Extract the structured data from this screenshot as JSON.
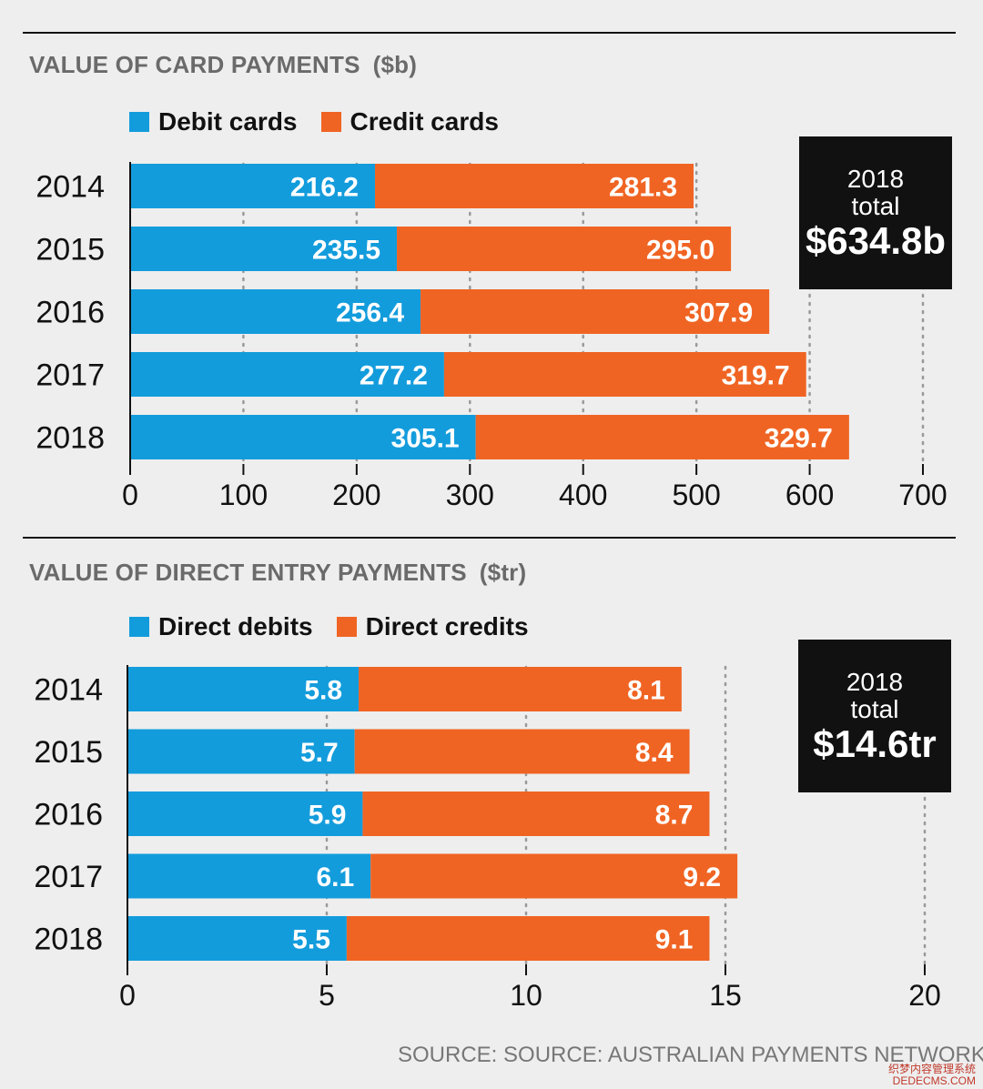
{
  "source": "SOURCE: SOURCE: AUSTRALIAN PAYMENTS NETWORK",
  "watermark": {
    "line1": "织梦内容管理系统",
    "line2": "DEDECMS.COM"
  },
  "colors": {
    "debit": "#139cdc",
    "credit": "#f06423",
    "box": "#111111",
    "background": "#eeeeee"
  },
  "panels": {
    "card": {
      "title": "VALUE OF CARD PAYMENTS",
      "unit": "($b)",
      "legend": [
        "Debit cards",
        "Credit cards"
      ],
      "total": {
        "year": "2018",
        "label": "total",
        "value": "$634.8b"
      }
    },
    "direct": {
      "title": "VALUE OF DIRECT ENTRY PAYMENTS",
      "unit": "($tr)",
      "legend": [
        "Direct debits",
        "Direct credits"
      ],
      "total": {
        "year": "2018",
        "label": "total",
        "value": "$14.6tr"
      }
    }
  },
  "chart_data": [
    {
      "type": "bar",
      "orientation": "horizontal",
      "stacked": true,
      "title": "VALUE OF CARD PAYMENTS ($b)",
      "categories": [
        "2014",
        "2015",
        "2016",
        "2017",
        "2018"
      ],
      "series": [
        {
          "name": "Debit cards",
          "values": [
            216.2,
            235.5,
            256.4,
            277.2,
            305.1
          ],
          "labels": [
            "216.2",
            "235.5",
            "256.4",
            "277.2",
            "305.1"
          ]
        },
        {
          "name": "Credit cards",
          "values": [
            281.3,
            295.0,
            307.9,
            319.7,
            329.7
          ],
          "labels": [
            "281.3",
            "295.0",
            "307.9",
            "319.7",
            "329.7"
          ]
        }
      ],
      "xlim": [
        0,
        700
      ],
      "xticks": [
        0,
        100,
        200,
        300,
        400,
        500,
        600,
        700
      ],
      "grid": "dotted vertical",
      "legend": "top-left"
    },
    {
      "type": "bar",
      "orientation": "horizontal",
      "stacked": true,
      "title": "VALUE OF DIRECT ENTRY PAYMENTS ($tr)",
      "categories": [
        "2014",
        "2015",
        "2016",
        "2017",
        "2018"
      ],
      "series": [
        {
          "name": "Direct debits",
          "values": [
            5.8,
            5.7,
            5.9,
            6.1,
            5.5
          ],
          "labels": [
            "5.8",
            "5.7",
            "5.9",
            "6.1",
            "5.5"
          ]
        },
        {
          "name": "Direct credits",
          "values": [
            8.1,
            8.4,
            8.7,
            9.2,
            9.1
          ],
          "labels": [
            "8.1",
            "8.4",
            "8.7",
            "9.2",
            "9.1"
          ]
        }
      ],
      "xlim": [
        0,
        20
      ],
      "xticks": [
        0,
        5,
        10,
        15,
        20
      ],
      "grid": "dotted vertical",
      "legend": "top-left"
    }
  ]
}
